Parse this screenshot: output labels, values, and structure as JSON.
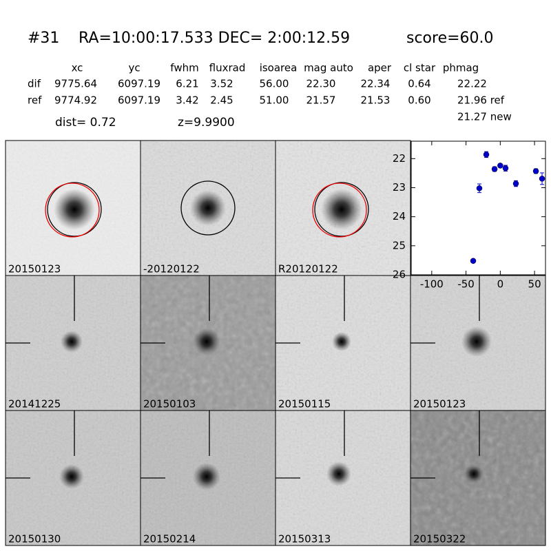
{
  "header": {
    "id": "#31",
    "coords": "RA=10:00:17.533 DEC= 2:00:12.59",
    "score": "score=60.0"
  },
  "table": {
    "columns": [
      "xc",
      "yc",
      "fwhm",
      "fluxrad",
      "isoarea",
      "mag auto",
      "aper",
      "cl star",
      "phmag"
    ],
    "rows": [
      {
        "name": "dif",
        "cells": [
          "9775.64",
          "6097.19",
          "6.21",
          "3.52",
          "56.00",
          "22.30",
          "22.34",
          "0.64",
          "22.22"
        ]
      },
      {
        "name": "ref",
        "cells": [
          "9774.92",
          "6097.19",
          "3.42",
          "2.45",
          "51.00",
          "21.57",
          "21.53",
          "0.60",
          "21.96 ref"
        ]
      }
    ],
    "extra": "21.27 new"
  },
  "dist": "dist=  0.72",
  "z": "z=9.9900",
  "stamps": [
    {
      "label": "20150123"
    },
    {
      "label": "-20120122"
    },
    {
      "label": "R20120122"
    },
    {
      "label": "20141225"
    },
    {
      "label": "20150103"
    },
    {
      "label": "20150115"
    },
    {
      "label": "20150123",
      "color": "#ff0000"
    },
    {
      "label": "20150130"
    },
    {
      "label": "20150214"
    },
    {
      "label": "20150313"
    },
    {
      "label": "20150322"
    }
  ],
  "chart_data": {
    "type": "scatter",
    "x": [
      -39.5,
      -30.5,
      -20.4,
      -8.3,
      0,
      7.7,
      22.8,
      52,
      61
    ],
    "series": [
      {
        "color": "#0000cc",
        "values": [
          25.52,
          23.02,
          21.86,
          22.36,
          22.24,
          22.33,
          22.86,
          22.43,
          22.69
        ],
        "errors": [
          0.05,
          0.15,
          0.1,
          0.08,
          0.06,
          0.1,
          0.1,
          0.08,
          0.2
        ]
      }
    ],
    "xlim": [
      -130,
      66
    ],
    "xticks": [
      -100,
      -50,
      0,
      50
    ],
    "ylim": [
      26,
      21.4
    ],
    "yticks": [
      22,
      23,
      24,
      25,
      26
    ]
  }
}
